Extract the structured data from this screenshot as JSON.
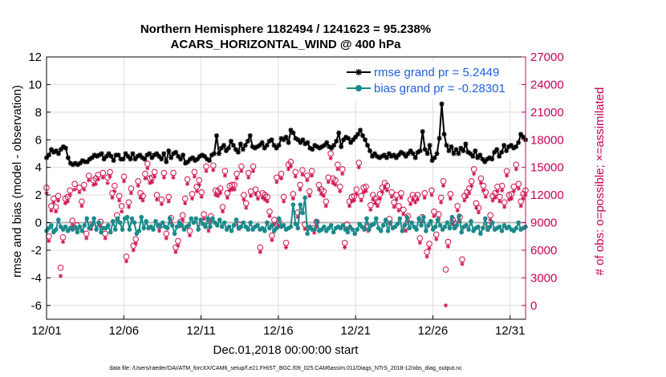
{
  "chart_data": {
    "type": "line",
    "title_line1": "Northern Hemisphere 1182494 / 1241623 = 95.238%",
    "title_line2": "ACARS_HORIZONTAL_WIND @ 400 hPa",
    "xlabel": "Dec.01,2018 00:00:00 start",
    "ylabel_left": "rmse and bias (model - observation)",
    "ylabel_right": "# of obs: o=possible; ×=assimilated",
    "footer": "data file: /Users/raeder/DAI/ATM_forcXX/CAM6_setup/f.e21.FHIST_BGC.f09_025.CAM6assim.011/Diags_NTrS_2018-12/obs_diag_output.nc",
    "x_tick_labels": [
      "12/01",
      "12/06",
      "12/11",
      "12/16",
      "12/21",
      "12/26",
      "12/31"
    ],
    "x_tick_days": [
      0,
      5,
      10,
      15,
      20,
      25,
      30
    ],
    "xlim": [
      0,
      31
    ],
    "ylim_left": [
      -7,
      12
    ],
    "y_ticks_left": [
      -6,
      -4,
      -2,
      0,
      2,
      4,
      6,
      8,
      10,
      12
    ],
    "ylim_right": [
      -1500,
      27000
    ],
    "y_ticks_right": [
      0,
      3000,
      6000,
      9000,
      12000,
      15000,
      18000,
      21000,
      24000,
      27000
    ],
    "reference_line_y": 0,
    "grid": true,
    "legend_position": "top-right",
    "colors": {
      "rmse": "#000000",
      "bias": "#1a8a8a",
      "obs": "#d0104e",
      "right_axis": "#c8005a",
      "legend_text": "#1f5fe0",
      "grid": "#dcdcdc",
      "zero_line": "#b4b4b4"
    },
    "series": [
      {
        "name": "rmse grand pr = 5.2449",
        "axis": "left",
        "marker": "asterisk",
        "values": [
          4.7,
          4.9,
          5.3,
          5.1,
          5.2,
          5.0,
          5.3,
          5.5,
          5.4,
          4.7,
          4.3,
          4.2,
          4.3,
          4.2,
          4.3,
          4.5,
          4.4,
          4.4,
          4.6,
          4.7,
          4.9,
          4.8,
          4.9,
          5.0,
          4.6,
          4.8,
          5.0,
          4.8,
          4.5,
          4.9,
          4.9,
          4.6,
          4.6,
          5.0,
          4.8,
          4.6,
          5.0,
          4.6,
          4.8,
          4.9,
          4.7,
          4.6,
          4.9,
          5.0,
          4.7,
          4.9,
          5.0,
          4.8,
          4.6,
          5.0,
          4.4,
          5.2,
          4.7,
          5.0,
          5.1,
          4.8,
          4.6,
          4.9,
          4.3,
          4.4,
          4.6,
          4.7,
          4.5,
          4.6,
          4.8,
          4.9,
          4.8,
          4.6,
          4.5,
          4.9,
          5.0,
          6.3,
          5.0,
          5.4,
          5.6,
          5.2,
          5.4,
          5.9,
          5.6,
          5.3,
          5.1,
          5.7,
          5.3,
          5.6,
          5.9,
          6.3,
          5.5,
          5.4,
          5.5,
          5.6,
          5.8,
          5.4,
          5.6,
          5.9,
          6.0,
          5.6,
          5.4,
          5.6,
          6.1,
          6.0,
          6.2,
          5.8,
          6.7,
          6.5,
          6.1,
          6.0,
          5.8,
          6.0,
          5.7,
          5.8,
          5.4,
          5.3,
          5.6,
          5.5,
          5.4,
          5.5,
          5.6,
          5.8,
          5.5,
          5.4,
          5.6,
          5.9,
          6.5,
          5.5,
          6.0,
          6.2,
          6.1,
          5.8,
          6.0,
          6.2,
          6.4,
          6.7,
          6.3,
          6.0,
          5.6,
          5.2,
          4.8,
          5.0,
          4.8,
          4.7,
          4.8,
          4.9,
          4.7,
          5.0,
          4.8,
          4.9,
          4.7,
          4.9,
          5.1,
          5.0,
          4.8,
          5.0,
          5.2,
          5.0,
          4.7,
          5.1,
          5.2,
          6.6,
          5.3,
          5.0,
          5.6,
          4.5,
          4.7,
          5.0,
          6.1,
          8.6,
          6.4,
          5.6,
          5.2,
          5.5,
          5.0,
          5.3,
          5.0,
          5.4,
          5.2,
          5.7,
          5.1,
          5.0,
          4.8,
          5.2,
          4.7,
          4.9,
          4.6,
          4.4,
          4.6,
          4.7,
          4.6,
          5.1,
          5.3,
          4.8,
          5.1,
          5.6,
          5.2,
          5.5,
          5.6,
          5.4,
          5.5,
          5.8,
          6.4,
          6.2,
          6.0
        ]
      },
      {
        "name": "bias grand pr = -0.28301",
        "axis": "left",
        "marker": "dot",
        "values": [
          -0.6,
          -0.4,
          -0.2,
          -0.7,
          -0.5,
          0.2,
          -0.3,
          -0.5,
          -0.3,
          -0.6,
          -0.4,
          -0.5,
          -0.3,
          -0.7,
          -0.3,
          -0.6,
          -0.2,
          0.3,
          -0.4,
          -0.2,
          0.3,
          -0.5,
          0.0,
          -0.7,
          -0.4,
          -0.4,
          -0.2,
          -0.7,
          0.1,
          -0.5,
          0.3,
          0.0,
          -0.5,
          0.3,
          0.4,
          -0.5,
          0.3,
          0.0,
          -0.8,
          -0.6,
          0.4,
          -0.4,
          0.1,
          -0.4,
          -0.3,
          -0.5,
          0.1,
          -0.2,
          -0.3,
          0.0,
          -0.3,
          -0.4,
          0.3,
          -0.2,
          -0.8,
          -0.3,
          0.0,
          -0.2,
          -0.5,
          -0.3,
          -0.2,
          0.3,
          0.0,
          0.3,
          -0.5,
          0.2,
          -0.1,
          -0.3,
          0.3,
          -0.3,
          0.3,
          0.0,
          -0.2,
          0.2,
          -0.3,
          0.0,
          -0.5,
          -0.3,
          -0.6,
          -0.2,
          0.2,
          -0.4,
          -0.3,
          0.0,
          -0.3,
          -0.5,
          0.0,
          -0.5,
          -0.3,
          -0.2,
          -0.5,
          -0.4,
          -0.6,
          0.0,
          -0.4,
          -0.2,
          -0.6,
          -0.4,
          0.3,
          -0.3,
          -0.2,
          -0.5,
          -0.4,
          -0.3,
          1.3,
          -0.1,
          -0.4,
          1.3,
          0.7,
          1.8,
          -0.8,
          -0.3,
          -0.5,
          -0.5,
          0.1,
          -0.6,
          -0.5,
          -0.3,
          -0.6,
          -0.4,
          -0.2,
          -0.7,
          -0.4,
          -0.3,
          -0.4,
          -0.2,
          -0.5,
          -0.7,
          -0.3,
          -0.5,
          -0.8,
          -0.5,
          -0.1,
          -0.3,
          -0.5,
          0.3,
          -0.5,
          -0.2,
          -0.1,
          0.3,
          -0.4,
          -0.6,
          -0.2,
          0.2,
          -0.6,
          0.0,
          -0.4,
          -0.3,
          -0.1,
          0.3,
          -0.6,
          -0.2,
          0.4,
          -0.4,
          0.0,
          -0.3,
          -0.5,
          0.3,
          -0.2,
          0.4,
          -0.6,
          -0.2,
          0.1,
          -0.5,
          -0.3,
          0.2,
          -0.2,
          -0.5,
          -0.3,
          0.0,
          -0.4,
          0.4,
          -0.4,
          -0.2,
          0.5,
          -0.7,
          -0.3,
          -0.2,
          -0.5,
          0.1,
          -0.6,
          -0.4,
          -0.3,
          -0.8,
          -0.4,
          0.3,
          -0.5,
          -0.3,
          0.0,
          -0.5,
          -0.4,
          -0.3,
          -0.6,
          -0.2,
          -0.4,
          -0.3,
          -0.5,
          -0.6,
          -0.4,
          0.0,
          -0.5,
          -0.4,
          -0.3
        ]
      },
      {
        "name": "possible obs",
        "axis": "right",
        "marker": "circle",
        "values": [
          12800,
          7500,
          10800,
          11600,
          10700,
          11900,
          4100,
          7400,
          11600,
          11800,
          12500,
          9200,
          13200,
          8700,
          12800,
          11300,
          13100,
          7800,
          14100,
          8800,
          13600,
          13800,
          14200,
          9100,
          14400,
          7800,
          13900,
          14500,
          12200,
          13000,
          9800,
          11900,
          10800,
          14000,
          5300,
          11200,
          12700,
          6500,
          7200,
          13500,
          12200,
          11900,
          14300,
          15400,
          13800,
          13900,
          14500,
          12000,
          8600,
          11500,
          14400,
          7800,
          11800,
          9500,
          14400,
          6300,
          7000,
          9100,
          9800,
          11600,
          13700,
          8100,
          12100,
          14500,
          12900,
          13600,
          12300,
          9900,
          15100,
          8600,
          9700,
          15200,
          12500,
          12400,
          12700,
          10700,
          14600,
          12200,
          13000,
          13100,
          13100,
          14300,
          8800,
          15100,
          12000,
          11100,
          14400,
          12400,
          15100,
          12600,
          12100,
          6300,
          12200,
          12000,
          11800,
          10200,
          7600,
          9300,
          13900,
          9100,
          14300,
          11800,
          6800,
          15300,
          15600,
          12100,
          14500,
          10100,
          13100,
          14700,
          8800,
          14100,
          12400,
          14600,
          8400,
          9100,
          13100,
          12600,
          12400,
          11300,
          13900,
          16500,
          13800,
          13600,
          15300,
          12900,
          14800,
          6800,
          8800,
          11300,
          11800,
          11900,
          12600,
          15500,
          11900,
          12800,
          12900,
          8600,
          10900,
          12000,
          11600,
          11300,
          12100,
          12800,
          13300,
          13000,
          9400,
          12300,
          11200,
          12000,
          10800,
          12200,
          10400,
          8600,
          9700,
          11500,
          12000,
          11700,
          12000,
          7300,
          9600,
          12200,
          5800,
          6700,
          12500,
          10200,
          7700,
          9900,
          11700,
          13500,
          3900,
          6900,
          12100,
          9300,
          8900,
          10800,
          9600,
          5000,
          11900,
          12300,
          12700,
          13500,
          14800,
          11100,
          10600,
          13800,
          13000,
          12300,
          8700,
          9800,
          11900,
          12200,
          12900,
          11800,
          13000,
          11200,
          14600,
          12000,
          12100,
          12900,
          15300,
          13200,
          11300,
          12100,
          12500
        ]
      },
      {
        "name": "assimilated obs",
        "axis": "right",
        "marker": "x",
        "values": [
          12200,
          7000,
          10300,
          11200,
          10200,
          11400,
          3200,
          6900,
          11100,
          11300,
          12000,
          8700,
          12600,
          8200,
          12300,
          10800,
          12600,
          7300,
          13600,
          8300,
          13100,
          13200,
          13700,
          8600,
          13900,
          7300,
          13300,
          14000,
          11700,
          12400,
          9300,
          11400,
          10200,
          13500,
          4800,
          10700,
          12200,
          6000,
          6700,
          13000,
          11700,
          11400,
          13800,
          14900,
          13300,
          13400,
          14000,
          11500,
          8100,
          11000,
          13900,
          7300,
          11300,
          9000,
          13900,
          5800,
          6500,
          8600,
          9300,
          11100,
          13200,
          7600,
          11600,
          14000,
          12400,
          13100,
          11800,
          9400,
          14600,
          8100,
          9200,
          14700,
          12000,
          11900,
          12200,
          10200,
          14100,
          11700,
          12500,
          12600,
          12600,
          13800,
          8300,
          14600,
          11500,
          10600,
          13900,
          11900,
          14600,
          12100,
          11600,
          5800,
          11700,
          11500,
          11300,
          9700,
          7100,
          8800,
          13400,
          8600,
          13800,
          11300,
          6300,
          14800,
          15100,
          11600,
          14000,
          9600,
          12600,
          14200,
          8300,
          13600,
          11900,
          14100,
          7900,
          8600,
          12600,
          12100,
          11900,
          10800,
          13400,
          16000,
          13300,
          13100,
          14800,
          12400,
          14300,
          6300,
          8300,
          10800,
          11300,
          11400,
          12100,
          15000,
          11400,
          12300,
          12400,
          8100,
          10400,
          11500,
          11100,
          10800,
          11600,
          12300,
          12800,
          12500,
          8900,
          11800,
          10700,
          11500,
          10300,
          11700,
          9900,
          8100,
          9200,
          11000,
          11500,
          11200,
          11500,
          6800,
          9100,
          11700,
          5300,
          6200,
          12000,
          9700,
          7200,
          9400,
          11200,
          13000,
          0,
          6400,
          11600,
          8800,
          8400,
          10300,
          9100,
          4500,
          11400,
          11800,
          12200,
          13000,
          14300,
          10600,
          10100,
          13300,
          12500,
          11800,
          8200,
          9300,
          11400,
          11700,
          12400,
          11300,
          12500,
          10700,
          14100,
          11500,
          11600,
          12400,
          14800,
          12700,
          10800,
          11600,
          12000
        ]
      }
    ]
  }
}
